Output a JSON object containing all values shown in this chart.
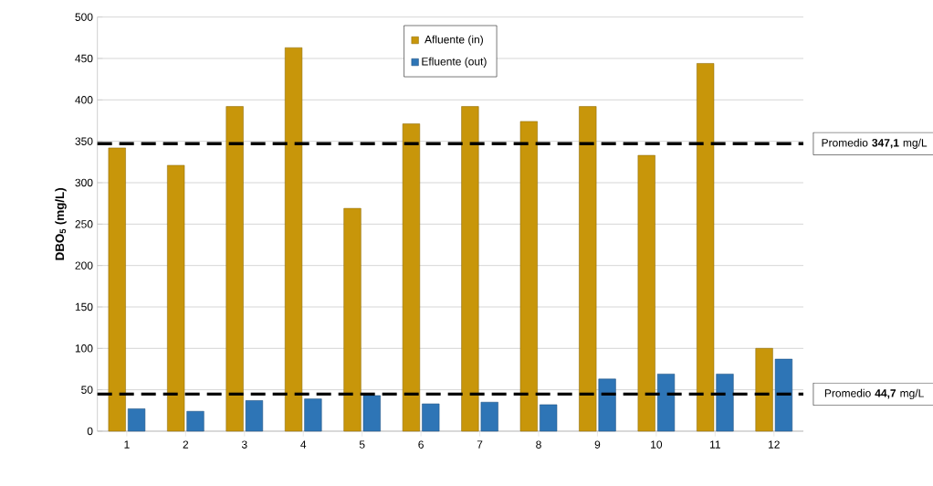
{
  "chart_data": {
    "type": "bar",
    "ylabel": "DBO$_{5}$ (mg/L)",
    "categories": [
      "1",
      "2",
      "3",
      "4",
      "5",
      "6",
      "7",
      "8",
      "9",
      "10",
      "11",
      "12"
    ],
    "series": [
      {
        "name": "Afluente (in)",
        "color": "#c8960a",
        "values": [
          342,
          321,
          392,
          463,
          269,
          371,
          392,
          374,
          392,
          333,
          444,
          100
        ]
      },
      {
        "name": "Efluente (out)",
        "color": "#2e75b6",
        "values": [
          27,
          24,
          37,
          39,
          43,
          33,
          35,
          32,
          63,
          69,
          69,
          87
        ]
      }
    ],
    "ylim": [
      0,
      500
    ],
    "yticks": [
      0,
      50,
      100,
      150,
      200,
      250,
      300,
      350,
      400,
      450,
      500
    ],
    "grid": "y",
    "legend": "top",
    "ref_lines": [
      {
        "axis": "y",
        "value": 347.1,
        "label": "Promedio **347,1** mg/L",
        "color": "#000000",
        "line_style": "dashed"
      },
      {
        "axis": "y",
        "value": 44.7,
        "label": "Promedio **44,7** mg/L",
        "color": "#000000",
        "line_style": "dashed"
      }
    ]
  }
}
